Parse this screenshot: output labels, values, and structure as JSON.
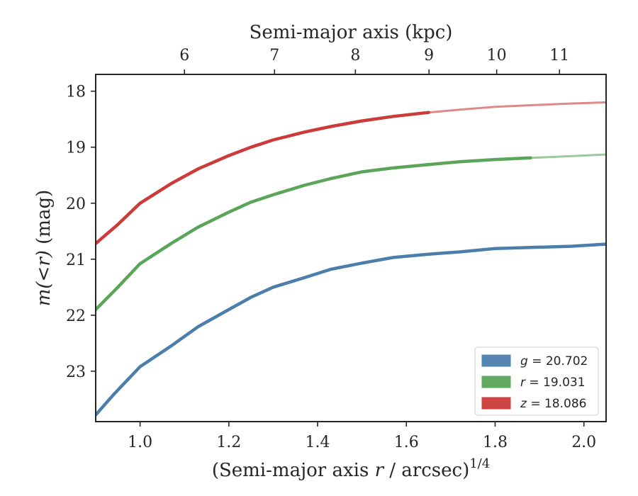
{
  "chart_data": {
    "type": "line",
    "title": "",
    "xlabel": "(Semi-major axis",
    "xlabel_var": "r",
    "xlabel_unit": "/ arcsec)",
    "xlabel_sup": "1/4",
    "ylabel_func": "m(<r)",
    "ylabel_unit": "(mag)",
    "top_xlabel": "Semi-major axis (kpc)",
    "xlim": [
      0.9,
      2.05
    ],
    "ylim": [
      23.9,
      17.7
    ],
    "y_inverted": true,
    "x_ticks": [
      1.0,
      1.2,
      1.4,
      1.6,
      1.8,
      2.0
    ],
    "x_tick_labels": [
      "1.0",
      "1.2",
      "1.4",
      "1.6",
      "1.8",
      "2.0"
    ],
    "y_ticks": [
      18,
      19,
      20,
      21,
      22,
      23
    ],
    "y_tick_labels": [
      "18",
      "19",
      "20",
      "21",
      "22",
      "23"
    ],
    "top_ticks": [
      5.95,
      6.65,
      7.35,
      8.05,
      8.75,
      9.45,
      10.15
    ],
    "top_tick_values": [
      6,
      7,
      8,
      9,
      10,
      11
    ],
    "top_tick_labels": [
      "6",
      "7",
      "8",
      "9",
      "10",
      "11"
    ],
    "legend_position": "lower-right",
    "series": [
      {
        "name": "g",
        "legend_var": "g",
        "legend_value": "= 20.702",
        "color": "#4c7eac",
        "x": [
          0.9,
          0.94,
          1.0,
          1.07,
          1.13,
          1.2,
          1.25,
          1.3,
          1.37,
          1.43,
          1.5,
          1.57,
          1.65,
          1.72,
          1.8,
          1.88,
          1.97,
          2.05
        ],
        "y": [
          23.78,
          23.42,
          22.92,
          22.55,
          22.21,
          21.9,
          21.68,
          21.5,
          21.33,
          21.18,
          21.07,
          20.97,
          20.91,
          20.87,
          20.81,
          20.79,
          20.77,
          20.73
        ],
        "solid_until": 2.05
      },
      {
        "name": "r",
        "legend_var": "r",
        "legend_value": "= 19.031",
        "color": "#5aa55a",
        "x": [
          0.9,
          0.95,
          1.0,
          1.07,
          1.13,
          1.2,
          1.25,
          1.3,
          1.37,
          1.43,
          1.5,
          1.57,
          1.65,
          1.72,
          1.8,
          1.88,
          1.97,
          2.05
        ],
        "y": [
          21.9,
          21.5,
          21.08,
          20.72,
          20.43,
          20.16,
          19.98,
          19.85,
          19.68,
          19.56,
          19.44,
          19.37,
          19.31,
          19.26,
          19.22,
          19.19,
          19.16,
          19.13
        ],
        "solid_until": 1.88
      },
      {
        "name": "z",
        "legend_var": "z",
        "legend_value": "= 18.086",
        "color": "#cc3a3a",
        "x": [
          0.9,
          0.95,
          1.0,
          1.07,
          1.13,
          1.2,
          1.25,
          1.3,
          1.37,
          1.43,
          1.5,
          1.57,
          1.65,
          1.72,
          1.8,
          1.88,
          1.97,
          2.05
        ],
        "y": [
          20.72,
          20.38,
          20.0,
          19.65,
          19.39,
          19.15,
          19.0,
          18.87,
          18.73,
          18.63,
          18.53,
          18.45,
          18.38,
          18.33,
          18.28,
          18.25,
          18.22,
          18.2
        ],
        "solid_until": 1.65
      }
    ]
  }
}
